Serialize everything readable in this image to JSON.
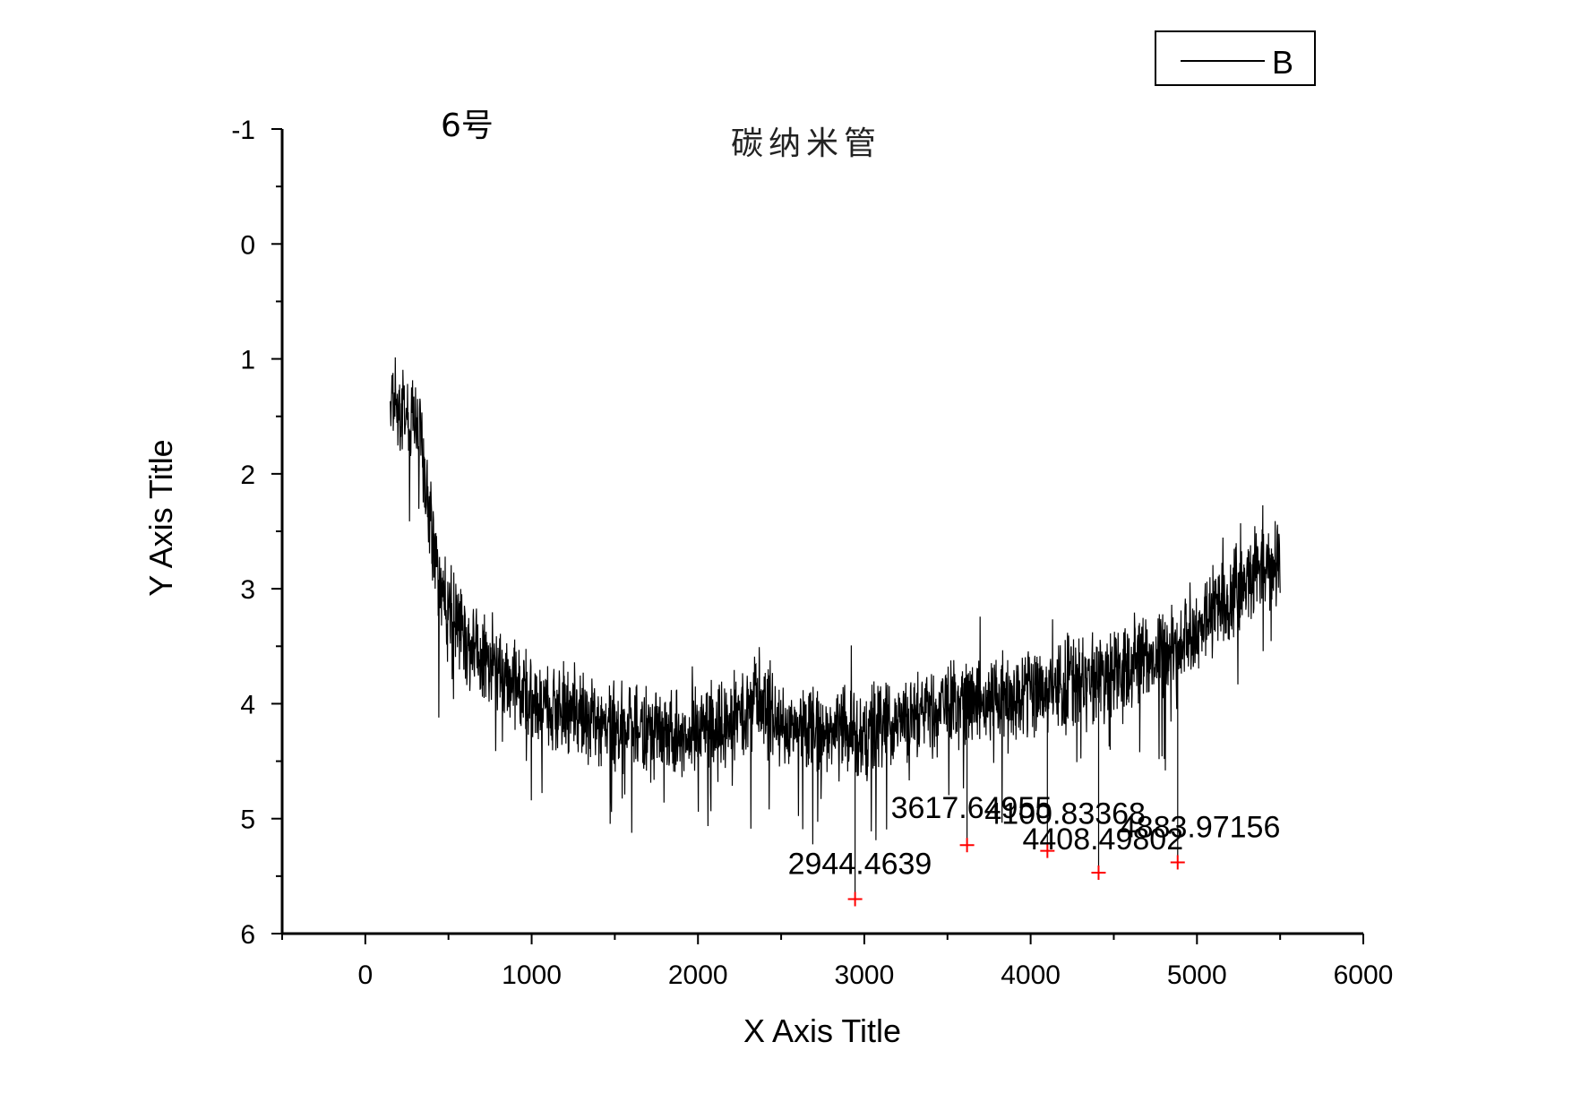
{
  "chart_data": {
    "type": "line",
    "title": "碳纳米管",
    "subtitle": "6号",
    "xlabel": "X Axis Title",
    "ylabel": "Y Axis Title",
    "xlim": [
      -500,
      6000
    ],
    "ylim": [
      -1,
      6
    ],
    "y_inverted": true,
    "x_ticks": [
      0,
      1000,
      2000,
      3000,
      4000,
      5000,
      6000
    ],
    "y_ticks": [
      -1,
      0,
      1,
      2,
      3,
      4,
      5,
      6
    ],
    "grid": false,
    "legend_position": "top-right",
    "series": [
      {
        "name": "B",
        "color": "#000000",
        "x_range": [
          150,
          5500
        ],
        "trend": [
          [
            150,
            1.35
          ],
          [
            250,
            1.5
          ],
          [
            320,
            1.55
          ],
          [
            400,
            2.6
          ],
          [
            500,
            3.2
          ],
          [
            700,
            3.6
          ],
          [
            1000,
            3.95
          ],
          [
            1500,
            4.2
          ],
          [
            2000,
            4.25
          ],
          [
            2300,
            4.1
          ],
          [
            2360,
            3.9
          ],
          [
            2500,
            4.2
          ],
          [
            3000,
            4.25
          ],
          [
            3500,
            4.05
          ],
          [
            4000,
            3.9
          ],
          [
            4500,
            3.75
          ],
          [
            5000,
            3.4
          ],
          [
            5300,
            2.9
          ],
          [
            5500,
            2.75
          ]
        ]
      }
    ],
    "peak_markers": [
      {
        "x": 2944.4639,
        "y": 5.7,
        "label": "2944.4639"
      },
      {
        "x": 3617.64955,
        "y": 5.23,
        "label": "3617.64955"
      },
      {
        "x": 4100.83368,
        "y": 5.28,
        "label": "4100.83368"
      },
      {
        "x": 4408.49802,
        "y": 5.47,
        "label": "4408.49802"
      },
      {
        "x": 4883.97156,
        "y": 5.38,
        "label": "4883.97156"
      }
    ],
    "marker_color": "#ff0000"
  }
}
